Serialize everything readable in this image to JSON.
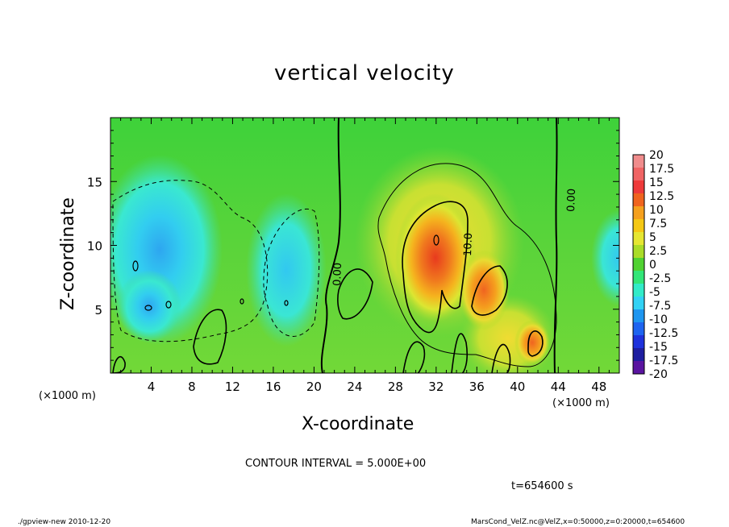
{
  "chart_data": {
    "type": "heatmap",
    "title": "vertical velocity",
    "xlabel": "X-coordinate",
    "ylabel": "Z-coordinate",
    "x_unit": "(×1000 m)",
    "y_unit": "(×1000 m)",
    "xlim": [
      0,
      50
    ],
    "ylim": [
      0,
      20
    ],
    "x_ticks": [
      "4",
      "8",
      "12",
      "16",
      "20",
      "24",
      "28",
      "32",
      "36",
      "40",
      "44",
      "48"
    ],
    "y_ticks": [
      "5",
      "10",
      "15"
    ],
    "colorbar_ticks": [
      "20",
      "17.5",
      "15",
      "12.5",
      "10",
      "7.5",
      "5",
      "2.5",
      "0",
      "-2.5",
      "-5",
      "-7.5",
      "-10",
      "-12.5",
      "-15",
      "-17.5",
      "-20"
    ],
    "colorbar_colors": [
      "#f08c8c",
      "#f06464",
      "#ee3a3a",
      "#f0641e",
      "#f5a01e",
      "#f5c814",
      "#e6e632",
      "#aadc28",
      "#50d232",
      "#32e678",
      "#32ebc8",
      "#32d2f5",
      "#1e96f0",
      "#1e64f0",
      "#1e32dc",
      "#1e1ea0",
      "#5a14a0"
    ],
    "contour_labels": [
      "0.00",
      "10.0",
      "0.00"
    ],
    "contour_interval": "CONTOUR INTERVAL = 5.000E+00",
    "time": "t=654600 s",
    "features": [
      {
        "kind": "updraft",
        "x_center": 32.5,
        "z_center": 9,
        "max_value": 13
      },
      {
        "kind": "updraft",
        "x_center": 37.5,
        "z_center": 5.5,
        "max_value": 12
      },
      {
        "kind": "updraft",
        "x_center": 41.5,
        "z_center": 2.5,
        "max_value": 12
      },
      {
        "kind": "downdraft",
        "x_center": 4.5,
        "z_center": 7,
        "min_value": -8
      },
      {
        "kind": "downdraft",
        "x_center": 17.5,
        "z_center": 7,
        "min_value": -6
      },
      {
        "kind": "downdraft",
        "x_center": 49.5,
        "z_center": 9,
        "min_value": -6
      }
    ]
  },
  "footer": {
    "left": "./gpview-new  2010-12-20",
    "right": "MarsCond_VelZ.nc@VelZ,x=0:50000,z=0:20000,t=654600"
  }
}
